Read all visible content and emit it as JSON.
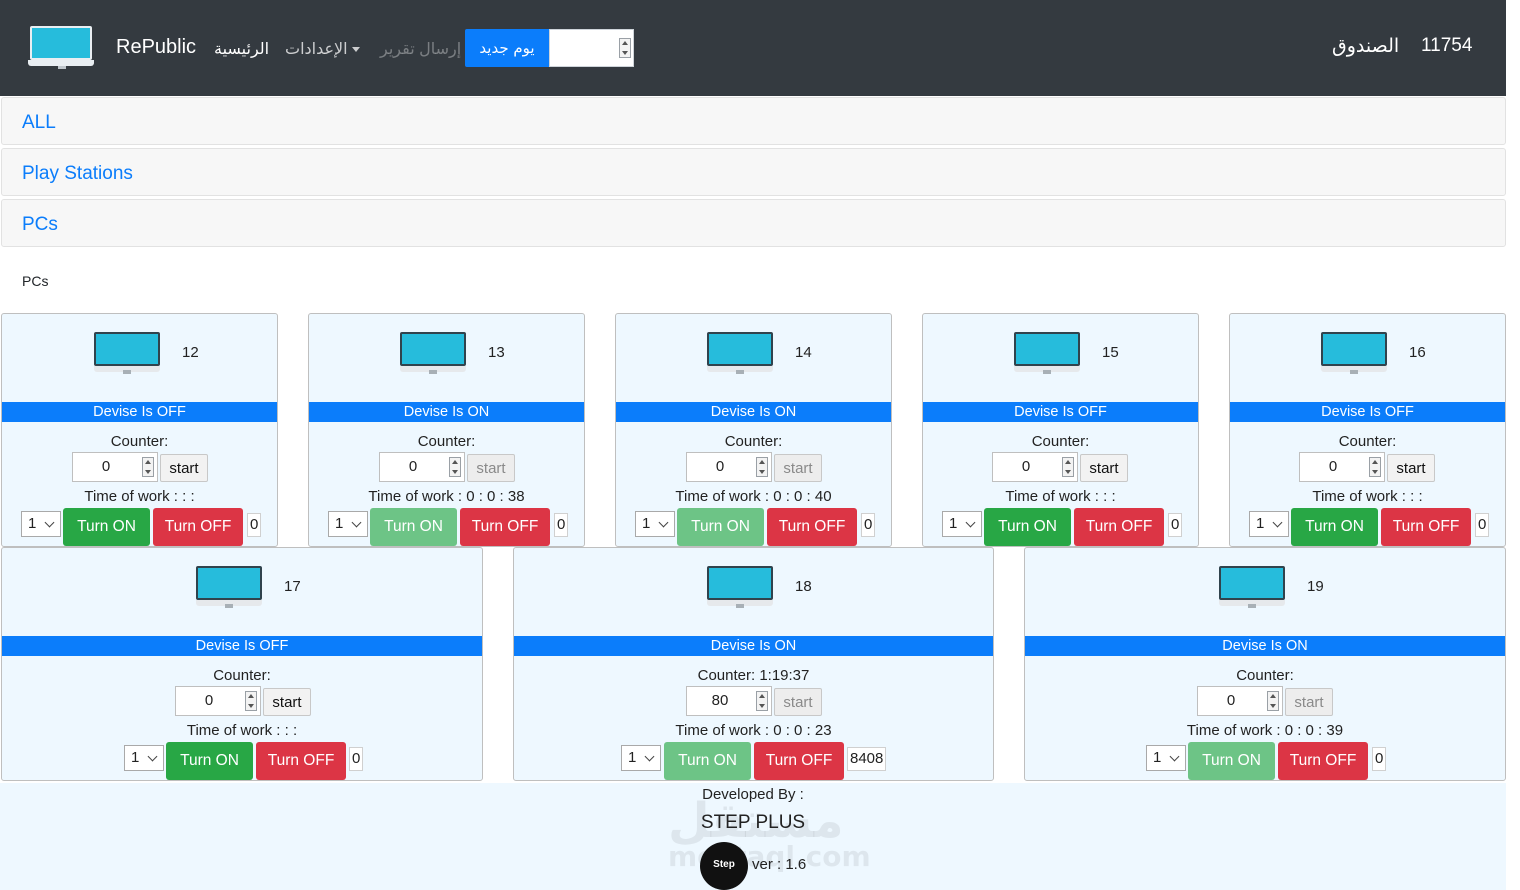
{
  "navbar": {
    "brand": "RePublic",
    "home": "الرئيسية",
    "settings": "الإعدادات",
    "report": "إرسال تقرير",
    "new_day": "يوم جديد",
    "cash_label": "الصندوق",
    "cash_value": "11754"
  },
  "accordion": [
    "ALL",
    "Play Stations",
    "PCs"
  ],
  "section_title": "PCs",
  "devices": [
    {
      "number": "12",
      "status": "Devise Is OFF",
      "counter_label": "Counter:",
      "counter": "0",
      "start": "start",
      "time_of_work": "Time of work : : :",
      "select": "1",
      "on": "Turn ON",
      "off": "Turn OFF",
      "count": "0"
    },
    {
      "number": "13",
      "status": "Devise Is ON",
      "counter_label": "Counter:",
      "counter": "0",
      "start": "start",
      "time_of_work": "Time of work : 0 : 0 : 38",
      "select": "1",
      "on": "Turn ON",
      "off": "Turn OFF",
      "count": "0"
    },
    {
      "number": "14",
      "status": "Devise Is ON",
      "counter_label": "Counter:",
      "counter": "0",
      "start": "start",
      "time_of_work": "Time of work : 0 : 0 : 40",
      "select": "1",
      "on": "Turn ON",
      "off": "Turn OFF",
      "count": "0"
    },
    {
      "number": "15",
      "status": "Devise Is OFF",
      "counter_label": "Counter:",
      "counter": "0",
      "start": "start",
      "time_of_work": "Time of work : : :",
      "select": "1",
      "on": "Turn ON",
      "off": "Turn OFF",
      "count": "0"
    },
    {
      "number": "16",
      "status": "Devise Is OFF",
      "counter_label": "Counter:",
      "counter": "0",
      "start": "start",
      "time_of_work": "Time of work : : :",
      "select": "1",
      "on": "Turn ON",
      "off": "Turn OFF",
      "count": "0"
    },
    {
      "number": "17",
      "status": "Devise Is OFF",
      "counter_label": "Counter:",
      "counter": "0",
      "start": "start",
      "time_of_work": "Time of work : : :",
      "select": "1",
      "on": "Turn ON",
      "off": "Turn OFF",
      "count": "0"
    },
    {
      "number": "18",
      "status": "Devise Is ON",
      "counter_label": "Counter: 1:19:37",
      "counter": "80",
      "start": "start",
      "time_of_work": "Time of work : 0 : 0 : 23",
      "select": "1",
      "on": "Turn ON",
      "off": "Turn OFF",
      "count": "8408"
    },
    {
      "number": "19",
      "status": "Devise Is ON",
      "counter_label": "Counter:",
      "counter": "0",
      "start": "start",
      "time_of_work": "Time of work : 0 : 0 : 39",
      "select": "1",
      "on": "Turn ON",
      "off": "Turn OFF",
      "count": "0"
    }
  ],
  "footer": {
    "developed_by": "Developed By :",
    "company": "STEP PLUS",
    "logo_text": "Step",
    "version": "ver : 1.6",
    "watermark": "مستقل",
    "watermark_url": "mostaql.com"
  }
}
